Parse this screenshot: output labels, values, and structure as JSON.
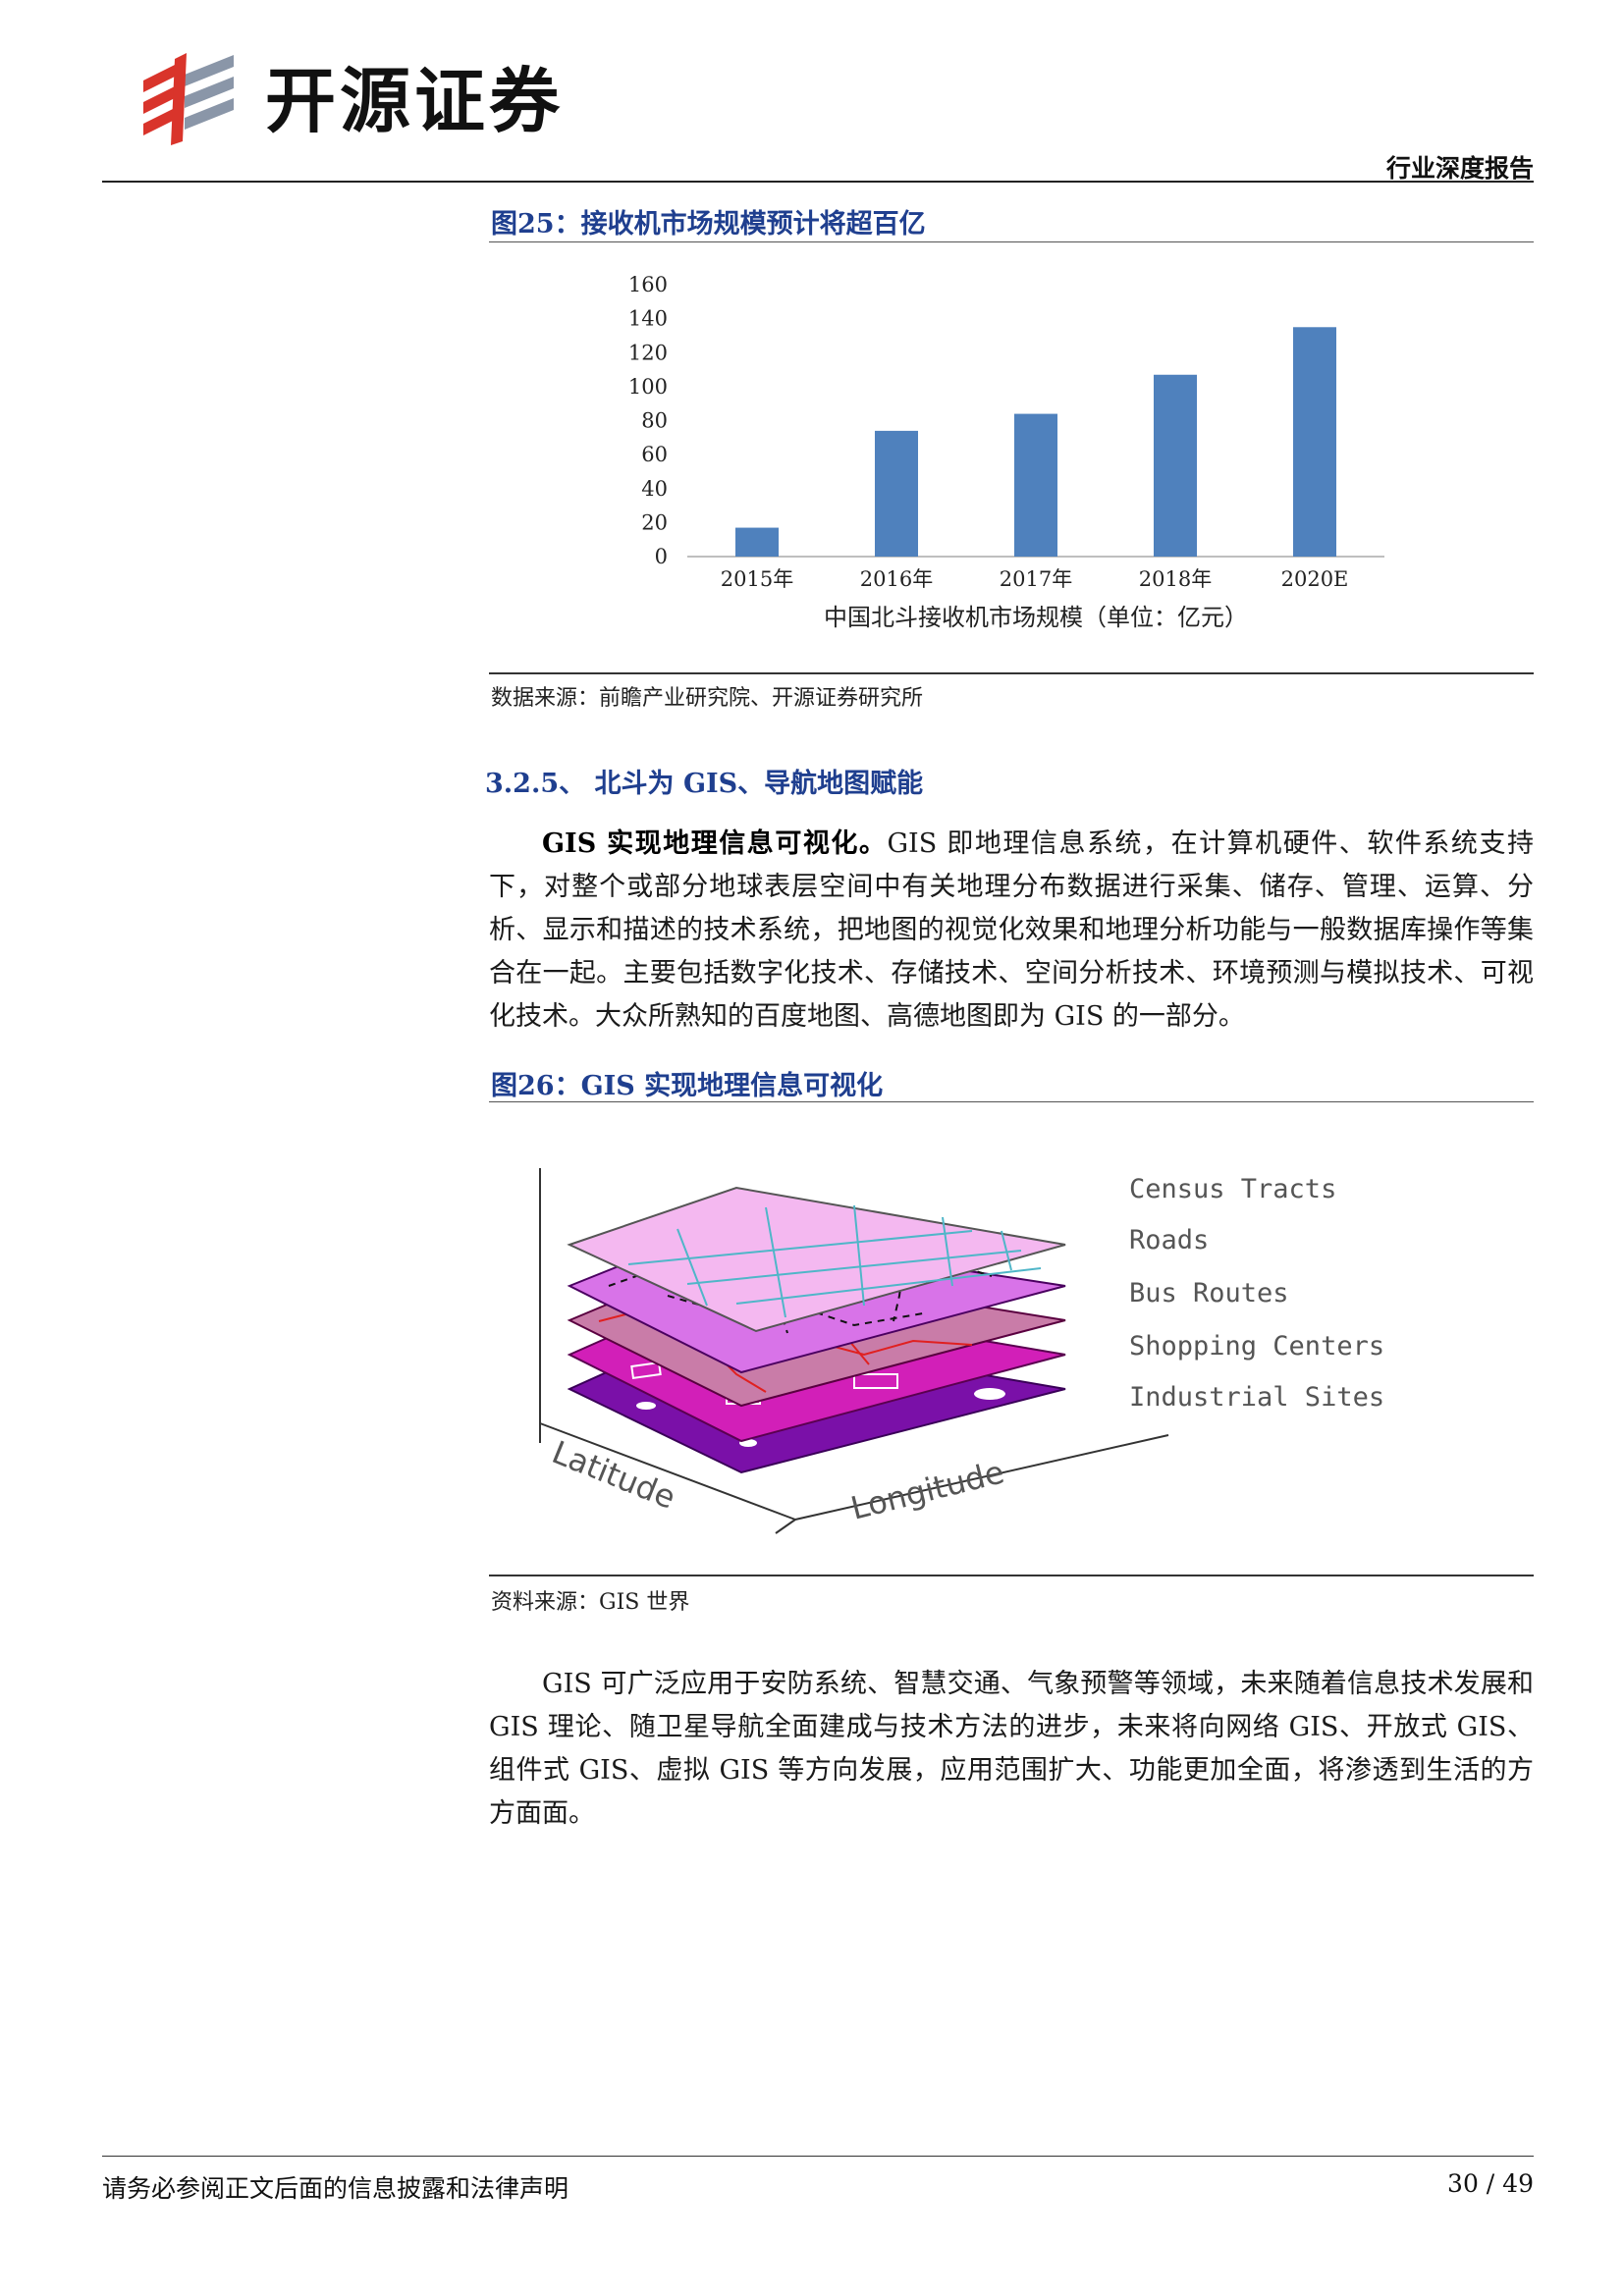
{
  "header": {
    "company": "开源证券",
    "report_type": "行业深度报告"
  },
  "figure25": {
    "title": "图25：接收机市场规模预计将超百亿",
    "source": "数据来源：前瞻产业研究院、开源证券研究所"
  },
  "chart_data": {
    "type": "bar",
    "categories": [
      "2015年",
      "2016年",
      "2017年",
      "2018年",
      "2020E"
    ],
    "values": [
      17,
      74,
      84,
      107,
      135
    ],
    "ylim": [
      0,
      160
    ],
    "yticks": [
      0,
      20,
      40,
      60,
      80,
      100,
      120,
      140,
      160
    ],
    "xlabel": "中国北斗接收机市场规模（单位：亿元）",
    "ylabel": "",
    "title": "",
    "grid": false,
    "bar_color": "#4f81bd"
  },
  "section": {
    "heading": "3.2.5、 北斗为 GIS、导航地图赋能"
  },
  "paragraph1": {
    "lead": "GIS 实现地理信息可视化。",
    "text": "GIS 即地理信息系统，在计算机硬件、软件系统支持下，对整个或部分地球表层空间中有关地理分布数据进行采集、储存、管理、运算、分析、显示和描述的技术系统，把地图的视觉化效果和地理分析功能与一般数据库操作等集合在一起。主要包括数字化技术、存储技术、空间分析技术、环境预测与模拟技术、可视化技术。大众所熟知的百度地图、高德地图即为 GIS 的一部分。"
  },
  "figure26": {
    "title": "图26：GIS 实现地理信息可视化",
    "source": "资料来源：GIS 世界",
    "layers": [
      "Census Tracts",
      "Roads",
      "Bus Routes",
      "Shopping Centers",
      "Industrial Sites"
    ],
    "axis_x": "Latitude",
    "axis_y": "Longitude",
    "layer_colors": [
      "#f4b8f0",
      "#d873e8",
      "#c97ca8",
      "#d21fb8",
      "#7a10a8"
    ]
  },
  "paragraph2": {
    "text": "GIS 可广泛应用于安防系统、智慧交通、气象预警等领域，未来随着信息技术发展和 GIS 理论、随卫星导航全面建成与技术方法的进步，未来将向网络 GIS、开放式 GIS、组件式 GIS、虚拟 GIS 等方向发展，应用范围扩大、功能更加全面，将渗透到生活的方方面面。"
  },
  "footer": {
    "disclaimer": "请务必参阅正文后面的信息披露和法律声明",
    "page": "30 / 49"
  }
}
